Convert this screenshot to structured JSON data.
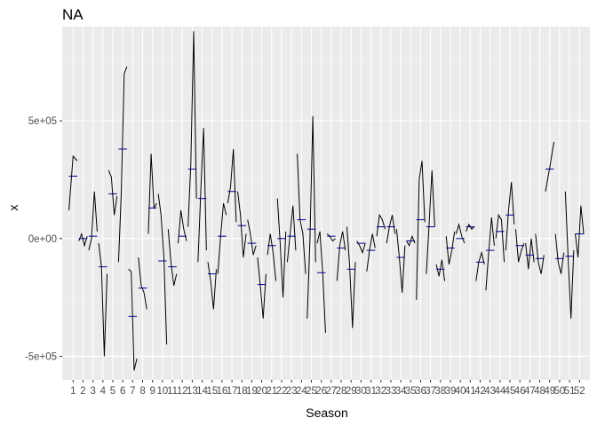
{
  "chart_data": {
    "type": "line",
    "subtype": "seasonal-subseries",
    "title": "NA",
    "xlabel": "Season",
    "ylabel": "x",
    "grid": true,
    "legend": "none",
    "ylim": [
      -600000,
      900000
    ],
    "y_ticks": [
      -500000,
      0,
      500000
    ],
    "y_tick_labels": [
      "-5e+05",
      "0e+00",
      "5e+05"
    ],
    "x_tick_labels": [
      "1",
      "2",
      "3",
      "4",
      "5",
      "6",
      "7",
      "8",
      "9",
      "10",
      "11",
      "12",
      "13",
      "14",
      "15",
      "16",
      "17",
      "18",
      "19",
      "20",
      "21",
      "22",
      "23",
      "24",
      "25",
      "26",
      "27",
      "28",
      "29",
      "30",
      "31",
      "32",
      "33",
      "34",
      "35",
      "36",
      "37",
      "38",
      "39",
      "40",
      "41",
      "42",
      "43",
      "44",
      "45",
      "46",
      "47",
      "48",
      "49",
      "50",
      "51",
      "52"
    ],
    "colors": {
      "panel": "#ebebeb",
      "grid_major": "#ffffff",
      "grid_minor": "#f2f2f2",
      "line": "#000000",
      "mean": "#00008b",
      "tick_text": "#4d4d4d"
    },
    "series": [
      {
        "season": "1",
        "mean": 265000,
        "values": [
          120000,
          350000,
          330000
        ]
      },
      {
        "season": "2",
        "mean": 0,
        "values": [
          -10000,
          20000,
          -30000,
          10000
        ]
      },
      {
        "season": "3",
        "mean": 10000,
        "values": [
          -50000,
          0,
          200000,
          30000
        ]
      },
      {
        "season": "4",
        "mean": -120000,
        "values": [
          -20000,
          -120000,
          -500000,
          -150000
        ]
      },
      {
        "season": "5",
        "mean": 190000,
        "values": [
          290000,
          260000,
          100000,
          180000
        ]
      },
      {
        "season": "6",
        "mean": 380000,
        "values": [
          -100000,
          200000,
          700000,
          730000
        ]
      },
      {
        "season": "7",
        "mean": -330000,
        "values": [
          -130000,
          -140000,
          -560000,
          -510000
        ]
      },
      {
        "season": "8",
        "mean": -210000,
        "values": [
          -80000,
          -200000,
          -230000,
          -300000
        ]
      },
      {
        "season": "9",
        "mean": 130000,
        "values": [
          20000,
          360000,
          130000,
          150000
        ]
      },
      {
        "season": "10",
        "mean": -95000,
        "values": [
          190000,
          100000,
          -80000,
          -450000
        ]
      },
      {
        "season": "11",
        "mean": -120000,
        "values": [
          40000,
          -100000,
          -200000,
          -150000
        ]
      },
      {
        "season": "12",
        "mean": 10000,
        "values": [
          -20000,
          120000,
          40000,
          -10000
        ]
      },
      {
        "season": "13",
        "mean": 295000,
        "values": [
          50000,
          320000,
          880000,
          170000
        ]
      },
      {
        "season": "14",
        "mean": 170000,
        "values": [
          -100000,
          200000,
          470000,
          -50000
        ]
      },
      {
        "season": "15",
        "mean": -150000,
        "values": [
          -100000,
          -180000,
          -300000,
          -130000
        ]
      },
      {
        "season": "16",
        "mean": 10000,
        "values": [
          -150000,
          10000,
          150000,
          100000
        ]
      },
      {
        "season": "17",
        "mean": 200000,
        "values": [
          150000,
          220000,
          380000,
          70000
        ]
      },
      {
        "season": "18",
        "mean": 55000,
        "values": [
          200000,
          100000,
          -80000,
          20000
        ]
      },
      {
        "season": "19",
        "mean": -20000,
        "values": [
          80000,
          20000,
          -70000,
          -30000
        ]
      },
      {
        "season": "20",
        "mean": -195000,
        "values": [
          -80000,
          -200000,
          -340000,
          -150000
        ]
      },
      {
        "season": "21",
        "mean": -30000,
        "values": [
          -70000,
          20000,
          -60000,
          -180000
        ]
      },
      {
        "season": "22",
        "mean": 0,
        "values": [
          170000,
          -20000,
          -250000,
          30000
        ]
      },
      {
        "season": "23",
        "mean": 10000,
        "values": [
          -100000,
          20000,
          140000,
          -50000
        ]
      },
      {
        "season": "24",
        "mean": 80000,
        "values": [
          360000,
          80000,
          20000,
          -150000
        ]
      },
      {
        "season": "25",
        "mean": 40000,
        "values": [
          -340000,
          0,
          520000,
          -100000
        ]
      },
      {
        "season": "26",
        "mean": -145000,
        "values": [
          -20000,
          30000,
          -150000,
          -400000
        ]
      },
      {
        "season": "27",
        "mean": 10000,
        "values": [
          20000,
          10000,
          -10000,
          0
        ]
      },
      {
        "season": "28",
        "mean": -40000,
        "values": [
          -180000,
          -30000,
          30000,
          -50000
        ]
      },
      {
        "season": "29",
        "mean": -130000,
        "values": [
          50000,
          -120000,
          -380000,
          -100000
        ]
      },
      {
        "season": "30",
        "mean": -20000,
        "values": [
          -10000,
          -30000,
          -60000,
          -20000
        ]
      },
      {
        "season": "31",
        "mean": -50000,
        "values": [
          -140000,
          -50000,
          20000,
          -40000
        ]
      },
      {
        "season": "32",
        "mean": 50000,
        "values": [
          10000,
          100000,
          80000,
          40000
        ]
      },
      {
        "season": "33",
        "mean": 50000,
        "values": [
          -20000,
          50000,
          100000,
          20000
        ]
      },
      {
        "season": "34",
        "mean": -80000,
        "values": [
          40000,
          -80000,
          -230000,
          -30000
        ]
      },
      {
        "season": "35",
        "mean": -10000,
        "values": [
          -10000,
          -30000,
          10000,
          -20000
        ]
      },
      {
        "season": "36",
        "mean": 80000,
        "values": [
          -260000,
          250000,
          330000,
          70000
        ]
      },
      {
        "season": "37",
        "mean": 50000,
        "values": [
          -150000,
          60000,
          290000,
          50000
        ]
      },
      {
        "season": "38",
        "mean": -130000,
        "values": [
          -110000,
          -160000,
          -90000,
          -180000
        ]
      },
      {
        "season": "39",
        "mean": -40000,
        "values": [
          10000,
          -110000,
          -50000,
          30000
        ]
      },
      {
        "season": "40",
        "mean": 0,
        "values": [
          20000,
          60000,
          10000,
          -20000
        ]
      },
      {
        "season": "41",
        "mean": 50000,
        "values": [
          30000,
          60000,
          40000,
          50000
        ]
      },
      {
        "season": "42",
        "mean": -100000,
        "values": [
          -180000,
          -100000,
          -60000,
          -110000
        ]
      },
      {
        "season": "43",
        "mean": -50000,
        "values": [
          -220000,
          -60000,
          90000,
          -30000
        ]
      },
      {
        "season": "44",
        "mean": 30000,
        "values": [
          0,
          100000,
          80000,
          -100000
        ]
      },
      {
        "season": "45",
        "mean": 100000,
        "values": [
          -50000,
          120000,
          240000,
          60000
        ]
      },
      {
        "season": "46",
        "mean": -30000,
        "values": [
          40000,
          -100000,
          -50000,
          -20000
        ]
      },
      {
        "season": "47",
        "mean": -70000,
        "values": [
          -20000,
          -130000,
          0,
          -100000
        ]
      },
      {
        "season": "48",
        "mean": -85000,
        "values": [
          20000,
          -100000,
          -150000,
          -70000
        ]
      },
      {
        "season": "49",
        "mean": 295000,
        "values": [
          200000,
          300000,
          410000
        ]
      },
      {
        "season": "50",
        "mean": -85000,
        "values": [
          20000,
          -100000,
          -150000,
          -60000
        ]
      },
      {
        "season": "51",
        "mean": -75000,
        "values": [
          200000,
          -80000,
          -340000,
          -50000
        ]
      },
      {
        "season": "52",
        "mean": 20000,
        "values": [
          20000,
          -80000,
          140000,
          20000
        ]
      }
    ]
  }
}
